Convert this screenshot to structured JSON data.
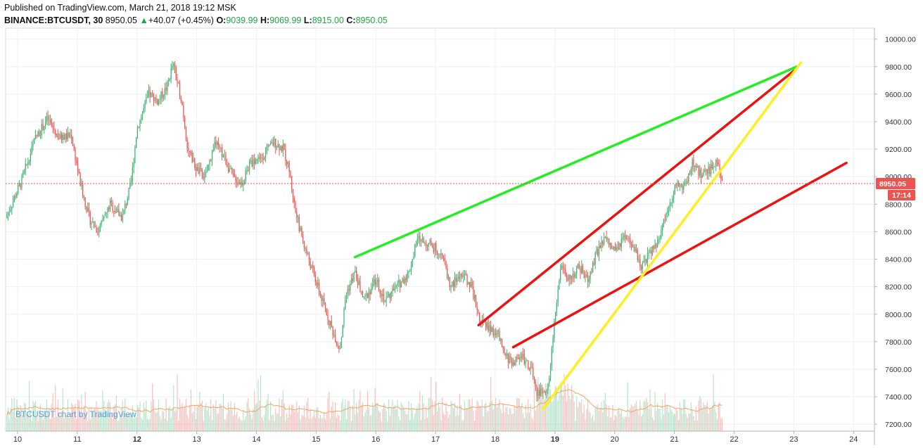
{
  "header": {
    "published": "Published on TradingView.com, March 21, 2018 19:12 MSK",
    "symbol": "BINANCE:BTCUSDT, 30",
    "last": "8950.05",
    "change": "+40.07 (+0.45%)",
    "o_label": "O:",
    "o_value": "9039.99",
    "h_label": "H:",
    "h_value": "9069.99",
    "l_label": "L:",
    "l_value": "8915.00",
    "c_label": "C:",
    "c_value": "8950.05"
  },
  "watermark": "BTCUSDT chart by TradingView",
  "price_tag": {
    "price": "8950.05",
    "countdown": "17:14"
  },
  "colors": {
    "up": "#26a69a",
    "up_line": "#3cb371",
    "down": "#ef5350",
    "green_line": "#22ee22",
    "red_line": "#ee1111",
    "yellow_line": "#ffee22",
    "ma_line": "#f4a460",
    "grid": "#eef0f3",
    "price_line": "#ef5350"
  },
  "chart_data": {
    "type": "candlestick",
    "title": "BINANCE:BTCUSDT, 30",
    "interval": "30",
    "x_ticks": [
      {
        "label": "10",
        "day": 10,
        "bold": false
      },
      {
        "label": "11",
        "day": 11,
        "bold": false
      },
      {
        "label": "12",
        "day": 12,
        "bold": true
      },
      {
        "label": "13",
        "day": 13,
        "bold": false
      },
      {
        "label": "14",
        "day": 14,
        "bold": false
      },
      {
        "label": "15",
        "day": 15,
        "bold": false
      },
      {
        "label": "16",
        "day": 16,
        "bold": false
      },
      {
        "label": "17",
        "day": 17,
        "bold": false
      },
      {
        "label": "18",
        "day": 18,
        "bold": false
      },
      {
        "label": "19",
        "day": 19,
        "bold": true
      },
      {
        "label": "20",
        "day": 20,
        "bold": false
      },
      {
        "label": "21",
        "day": 21,
        "bold": false
      },
      {
        "label": "22",
        "day": 22,
        "bold": false
      },
      {
        "label": "23",
        "day": 23,
        "bold": false
      },
      {
        "label": "24",
        "day": 24,
        "bold": false
      }
    ],
    "y_ticks": [
      "10000.00",
      "9800.00",
      "9600.00",
      "9400.00",
      "9200.00",
      "9000.00",
      "8800.00",
      "8600.00",
      "8400.00",
      "8200.00",
      "8000.00",
      "7800.00",
      "7600.00",
      "7400.00",
      "7200.00"
    ],
    "ylim": [
      7150,
      10080
    ],
    "xlim_days": [
      9.8,
      24.35
    ],
    "last_price": 8950.05,
    "price_path": [
      [
        9.8,
        8700
      ],
      [
        10.05,
        8950
      ],
      [
        10.3,
        9280
      ],
      [
        10.5,
        9420
      ],
      [
        10.7,
        9280
      ],
      [
        10.9,
        9300
      ],
      [
        11.05,
        8950
      ],
      [
        11.2,
        8700
      ],
      [
        11.35,
        8600
      ],
      [
        11.55,
        8800
      ],
      [
        11.75,
        8700
      ],
      [
        11.9,
        8950
      ],
      [
        12.0,
        9350
      ],
      [
        12.2,
        9600
      ],
      [
        12.35,
        9550
      ],
      [
        12.5,
        9650
      ],
      [
        12.6,
        9820
      ],
      [
        12.75,
        9550
      ],
      [
        12.85,
        9200
      ],
      [
        13.0,
        9050
      ],
      [
        13.15,
        9000
      ],
      [
        13.3,
        9250
      ],
      [
        13.45,
        9150
      ],
      [
        13.6,
        9000
      ],
      [
        13.75,
        8950
      ],
      [
        13.9,
        9100
      ],
      [
        14.1,
        9150
      ],
      [
        14.3,
        9250
      ],
      [
        14.45,
        9200
      ],
      [
        14.55,
        9050
      ],
      [
        14.65,
        8750
      ],
      [
        14.8,
        8500
      ],
      [
        14.95,
        8300
      ],
      [
        15.1,
        8100
      ],
      [
        15.3,
        7850
      ],
      [
        15.4,
        7750
      ],
      [
        15.5,
        8150
      ],
      [
        15.65,
        8300
      ],
      [
        15.8,
        8100
      ],
      [
        16.0,
        8250
      ],
      [
        16.15,
        8100
      ],
      [
        16.35,
        8200
      ],
      [
        16.55,
        8300
      ],
      [
        16.7,
        8550
      ],
      [
        16.85,
        8520
      ],
      [
        17.1,
        8450
      ],
      [
        17.25,
        8200
      ],
      [
        17.45,
        8300
      ],
      [
        17.6,
        8200
      ],
      [
        17.75,
        7950
      ],
      [
        17.9,
        7900
      ],
      [
        18.05,
        7850
      ],
      [
        18.15,
        7700
      ],
      [
        18.3,
        7650
      ],
      [
        18.45,
        7700
      ],
      [
        18.6,
        7600
      ],
      [
        18.7,
        7420
      ],
      [
        18.82,
        7450
      ],
      [
        18.9,
        7500
      ],
      [
        19.0,
        8000
      ],
      [
        19.1,
        8350
      ],
      [
        19.25,
        8250
      ],
      [
        19.4,
        8350
      ],
      [
        19.55,
        8250
      ],
      [
        19.7,
        8450
      ],
      [
        19.85,
        8550
      ],
      [
        20.0,
        8450
      ],
      [
        20.15,
        8550
      ],
      [
        20.3,
        8500
      ],
      [
        20.45,
        8350
      ],
      [
        20.6,
        8450
      ],
      [
        20.75,
        8550
      ],
      [
        20.9,
        8800
      ],
      [
        21.05,
        8950
      ],
      [
        21.15,
        8900
      ],
      [
        21.3,
        9100
      ],
      [
        21.45,
        9000
      ],
      [
        21.6,
        9050
      ],
      [
        21.72,
        9120
      ],
      [
        21.82,
        8950
      ]
    ],
    "trend_lines": [
      {
        "name": "green",
        "color": "#22ee22",
        "x1": 15.65,
        "y1": 8415,
        "x2": 23.05,
        "y2": 9800
      },
      {
        "name": "red-upper",
        "color": "#ee1111",
        "x1": 17.72,
        "y1": 7920,
        "x2": 23.0,
        "y2": 9770
      },
      {
        "name": "red-lower",
        "color": "#ee1111",
        "x1": 18.3,
        "y1": 7760,
        "x2": 23.88,
        "y2": 9100
      },
      {
        "name": "yellow",
        "color": "#ffee22",
        "x1": 18.8,
        "y1": 7310,
        "x2": 23.12,
        "y2": 9830
      }
    ]
  }
}
